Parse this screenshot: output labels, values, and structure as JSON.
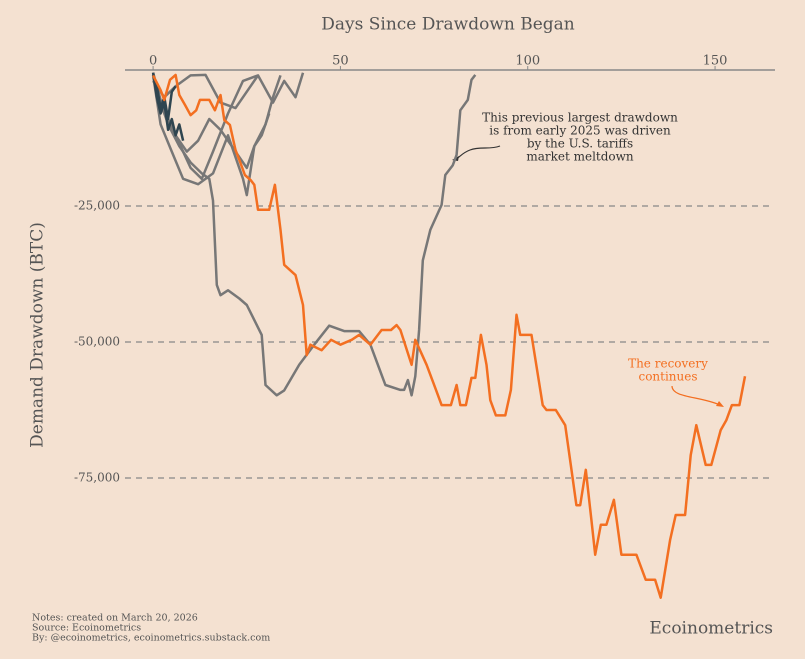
{
  "chart_data": {
    "type": "line",
    "title": "Days Since Drawdown Began",
    "ylabel": "Demand Drawdown (BTC)",
    "xlim": [
      -7.5,
      166
    ],
    "ylim": [
      -100000,
      0
    ],
    "xticks": [
      0,
      50,
      100,
      150
    ],
    "yticks": [
      {
        "value": -25000,
        "label": "-25,000"
      },
      {
        "value": -50000,
        "label": "-50,000"
      },
      {
        "value": -75000,
        "label": "-75,000"
      }
    ],
    "grid": true,
    "series": [
      {
        "color": "#777777",
        "x": [
          0,
          2,
          4,
          7,
          10,
          13,
          15,
          16,
          17,
          18,
          20,
          23,
          25,
          29,
          30,
          33,
          35,
          39,
          43,
          47,
          51,
          55,
          58,
          62,
          66,
          67,
          68,
          69,
          70,
          71,
          72,
          74,
          77,
          78,
          80,
          81,
          82,
          84,
          85,
          86
        ],
        "values": [
          -900,
          -6000,
          -10000,
          -14000,
          -17000,
          -19000,
          -20000,
          -24000,
          -39500,
          -41400,
          -40500,
          -42000,
          -43200,
          -48700,
          -57900,
          -59800,
          -58900,
          -54200,
          -50500,
          -47000,
          -48000,
          -48000,
          -50500,
          -57900,
          -58800,
          -58800,
          -57000,
          -59800,
          -56300,
          -47800,
          -35000,
          -29400,
          -24800,
          -19300,
          -17500,
          -15600,
          -7400,
          -5500,
          -1800,
          -900
        ]
      },
      {
        "color": "#777777",
        "x": [
          0,
          3,
          6,
          10,
          13,
          16,
          20,
          24,
          28,
          32,
          35,
          38,
          40
        ],
        "values": [
          -500,
          -8000,
          -12000,
          -18000,
          -20000,
          -15000,
          -8000,
          -2000,
          -1000,
          -6000,
          -2000,
          -5000,
          -500
        ]
      },
      {
        "color": "#777777",
        "x": [
          0,
          2,
          5,
          8,
          12,
          16,
          20,
          24,
          25,
          27,
          30,
          32,
          34
        ],
        "values": [
          -1000,
          -10000,
          -15000,
          -20000,
          -21000,
          -19000,
          -12000,
          -20000,
          -23000,
          -14000,
          -10000,
          -5000,
          -1000
        ]
      },
      {
        "color": "#777777",
        "x": [
          0,
          3,
          6,
          10,
          14,
          18,
          22,
          26,
          28
        ],
        "values": [
          -2000,
          -5000,
          -3000,
          -1000,
          -900,
          -6000,
          -7000,
          -3000,
          -1000
        ]
      },
      {
        "color": "#777777",
        "x": [
          0,
          2,
          4,
          6,
          9,
          12,
          15,
          18,
          22,
          25,
          27,
          29,
          31
        ],
        "values": [
          -500,
          -6000,
          -9000,
          -12000,
          -15000,
          -13000,
          -9000,
          -11000,
          -15000,
          -18000,
          -14000,
          -12000,
          -8000
        ]
      },
      {
        "color": "#2f4550",
        "x": [
          0,
          1,
          2,
          3,
          4,
          5,
          6,
          7,
          8
        ],
        "values": [
          -500,
          -5000,
          -8000,
          -6000,
          -11000,
          -9000,
          -12000,
          -10000,
          -13000
        ]
      },
      {
        "color": "#2f4550",
        "x": [
          0,
          1,
          2,
          3,
          4,
          5,
          6
        ],
        "values": [
          -1000,
          -3000,
          -7000,
          -5000,
          -9000,
          -4000,
          -3000
        ]
      },
      {
        "color": "#f36f21",
        "x": [
          0,
          2,
          3,
          4.5,
          6,
          7,
          8.5,
          10,
          11.5,
          12.5,
          15,
          16.5,
          18,
          19,
          20.5,
          22,
          23,
          24.5,
          26,
          27,
          28,
          31,
          32.5,
          34,
          35,
          38,
          40,
          41,
          42,
          45,
          47.5,
          50,
          53,
          55,
          58,
          61,
          63.5,
          65,
          66,
          69,
          70,
          73,
          75.5,
          77,
          79.5,
          81,
          82,
          83.5,
          85,
          86,
          87.5,
          89,
          90,
          91.5,
          94,
          95.5,
          97,
          98,
          101,
          104,
          105,
          107.5,
          110,
          111.5,
          113,
          114,
          115.5,
          117,
          118,
          119.5,
          121,
          123,
          125,
          129,
          131.5,
          133,
          134,
          135.5,
          138,
          139.5,
          142,
          143.5,
          145,
          147.5,
          149,
          151.5,
          153,
          154.5,
          156.5,
          158
        ],
        "values": [
          -1000,
          -3700,
          -5500,
          -1800,
          -900,
          -4600,
          -6400,
          -8300,
          -7400,
          -5500,
          -5500,
          -7400,
          -4600,
          -9200,
          -10100,
          -14700,
          -16500,
          -19300,
          -20200,
          -21100,
          -25700,
          -25700,
          -21100,
          -29400,
          -35800,
          -37700,
          -43200,
          -52400,
          -50500,
          -51500,
          -49600,
          -50500,
          -49600,
          -48700,
          -50500,
          -47800,
          -47800,
          -46900,
          -47800,
          -54200,
          -49600,
          -54200,
          -58800,
          -61600,
          -61600,
          -57900,
          -61600,
          -61600,
          -56600,
          -56600,
          -48700,
          -54200,
          -60700,
          -63500,
          -63500,
          -58800,
          -45000,
          -48700,
          -48700,
          -61600,
          -62500,
          -62500,
          -65300,
          -72600,
          -80000,
          -80000,
          -73500,
          -82700,
          -89100,
          -83600,
          -83600,
          -79000,
          -89100,
          -89100,
          -93700,
          -93700,
          -93700,
          -97000,
          -86400,
          -81800,
          -81800,
          -70800,
          -65300,
          -72600,
          -72600,
          -66200,
          -64400,
          -61600,
          -61600,
          -56300
        ]
      }
    ],
    "annotations": [
      {
        "lines": [
          "This previous largest drawdown",
          "is from early 2025 was driven",
          "by the U.S. tariffs",
          "market meltdown"
        ],
        "color": "#333333"
      },
      {
        "lines": [
          "The recovery",
          "continues"
        ],
        "color": "#f36f21"
      }
    ],
    "notes": [
      "Notes: created on March 20, 2026",
      "Source: Ecoinometrics",
      "By: @ecoinometrics, ecoinometrics.substack.com"
    ],
    "brand": "Ecoinometrics"
  }
}
